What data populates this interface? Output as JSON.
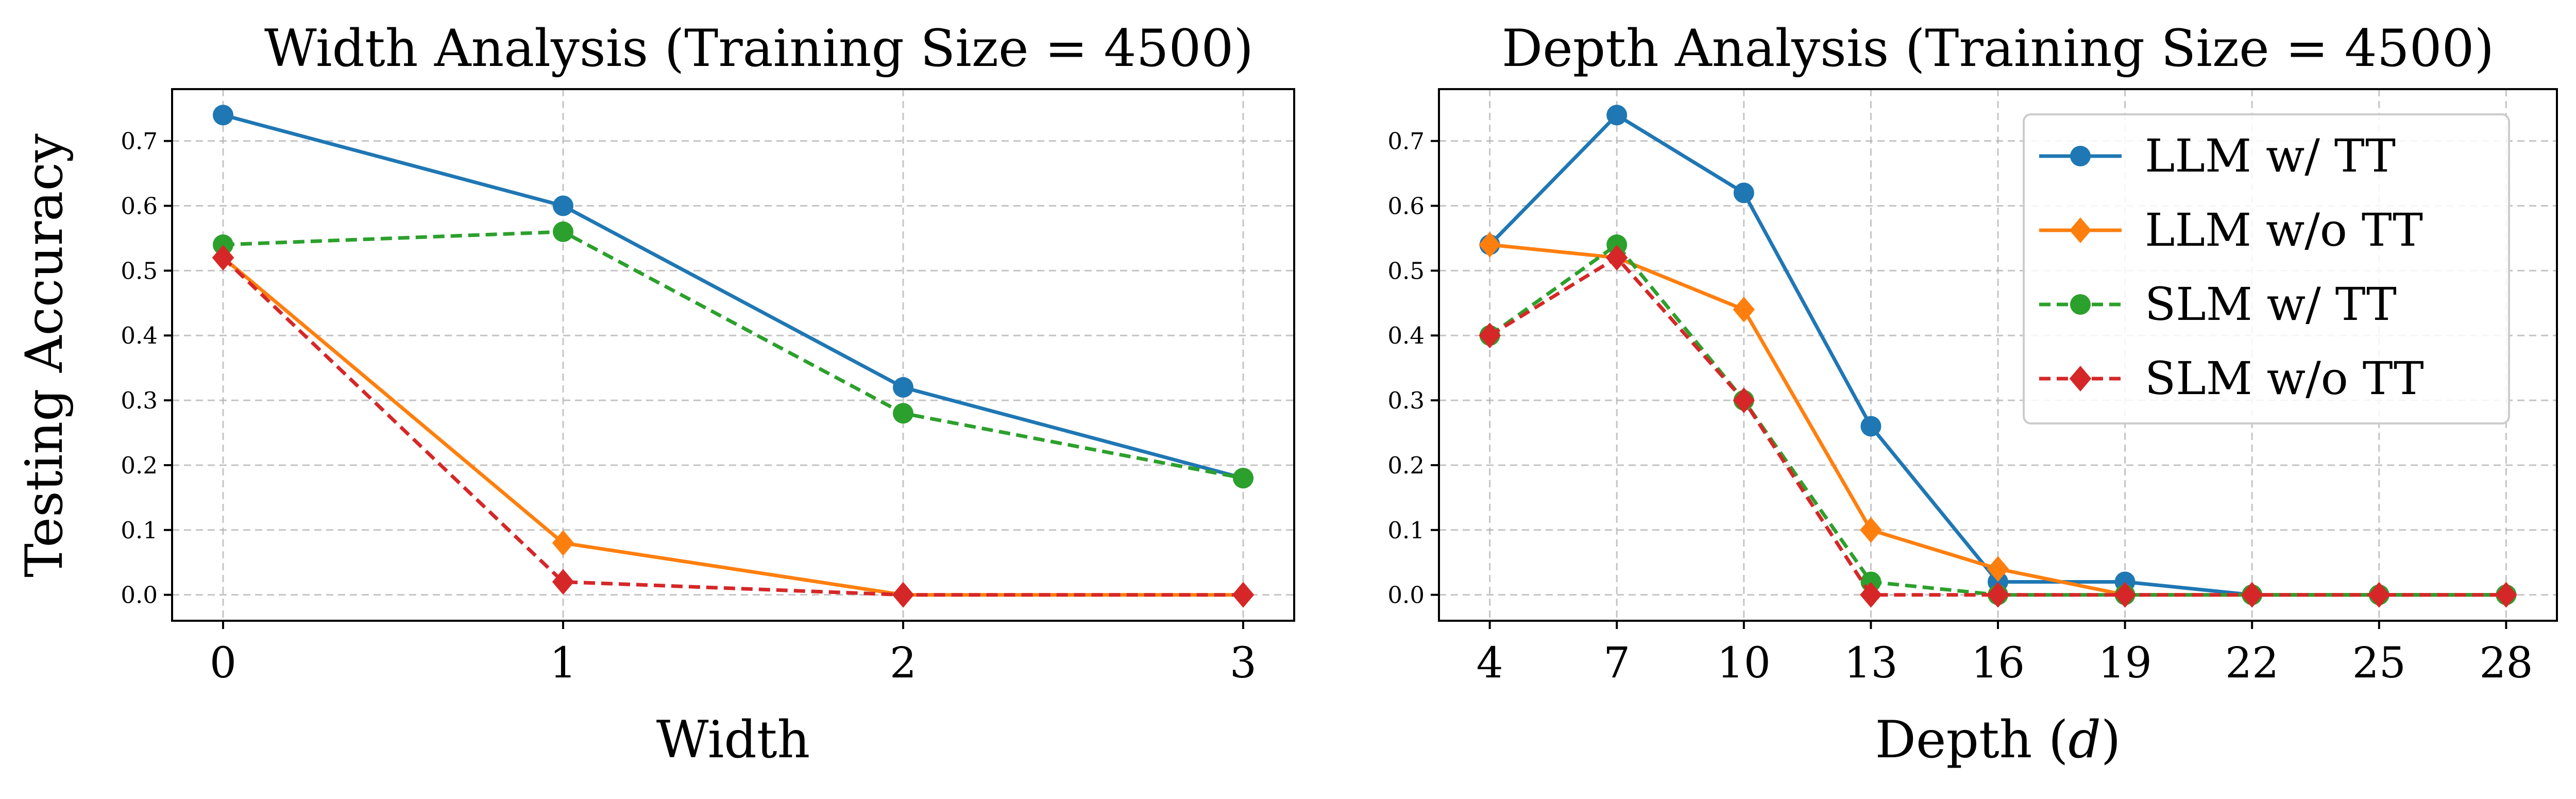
{
  "chart_data": [
    {
      "type": "line",
      "title": "Width Analysis (Training Size = 4500)",
      "xlabel": "Width",
      "ylabel": "Testing Accuracy",
      "x": [
        0,
        1,
        2,
        3
      ],
      "xticks": [
        "0",
        "1",
        "2",
        "3"
      ],
      "xlim": [
        -0.15,
        3.15
      ],
      "ylim": [
        -0.04,
        0.78
      ],
      "yticks": [
        "0.0",
        "0.1",
        "0.2",
        "0.3",
        "0.4",
        "0.5",
        "0.6",
        "0.7"
      ],
      "grid": true,
      "legend": false,
      "series": [
        {
          "name": "LLM w/ TT",
          "values": [
            0.74,
            0.6,
            0.32,
            0.18
          ],
          "color": "#1f77b4",
          "dash": false,
          "marker": "circle"
        },
        {
          "name": "LLM w/o TT",
          "values": [
            0.52,
            0.08,
            0.0,
            0.0
          ],
          "color": "#ff7f0e",
          "dash": false,
          "marker": "diamond"
        },
        {
          "name": "SLM w/ TT",
          "values": [
            0.54,
            0.56,
            0.28,
            0.18
          ],
          "color": "#2ca02c",
          "dash": true,
          "marker": "circle"
        },
        {
          "name": "SLM w/o TT",
          "values": [
            0.52,
            0.02,
            0.0,
            0.0
          ],
          "color": "#d62728",
          "dash": true,
          "marker": "diamond"
        }
      ]
    },
    {
      "type": "line",
      "title": "Depth Analysis (Training Size = 4500)",
      "xlabel": "Depth (",
      "xlabel_var": "d",
      "xlabel_end": ")",
      "ylabel": "",
      "x": [
        4,
        7,
        10,
        13,
        16,
        19,
        22,
        25,
        28
      ],
      "xticks": [
        "4",
        "7",
        "10",
        "13",
        "16",
        "19",
        "22",
        "25",
        "28"
      ],
      "xlim": [
        2.8,
        29.2
      ],
      "ylim": [
        -0.04,
        0.78
      ],
      "yticks": [
        "0.0",
        "0.1",
        "0.2",
        "0.3",
        "0.4",
        "0.5",
        "0.6",
        "0.7"
      ],
      "grid": true,
      "legend": "top-right",
      "series": [
        {
          "name": "LLM w/ TT",
          "values": [
            0.54,
            0.74,
            0.62,
            0.26,
            0.02,
            0.02,
            0.0,
            0.0,
            0.0
          ],
          "color": "#1f77b4",
          "dash": false,
          "marker": "circle"
        },
        {
          "name": "LLM w/o TT",
          "values": [
            0.54,
            0.52,
            0.44,
            0.1,
            0.04,
            0.0,
            0.0,
            0.0,
            0.0
          ],
          "color": "#ff7f0e",
          "dash": false,
          "marker": "diamond"
        },
        {
          "name": "SLM w/ TT",
          "values": [
            0.4,
            0.54,
            0.3,
            0.02,
            0.0,
            0.0,
            0.0,
            0.0,
            0.0
          ],
          "color": "#2ca02c",
          "dash": true,
          "marker": "circle"
        },
        {
          "name": "SLM w/o TT",
          "values": [
            0.4,
            0.52,
            0.3,
            0.0,
            0.0,
            0.0,
            0.0,
            0.0,
            0.0
          ],
          "color": "#d62728",
          "dash": true,
          "marker": "diamond"
        }
      ]
    }
  ]
}
